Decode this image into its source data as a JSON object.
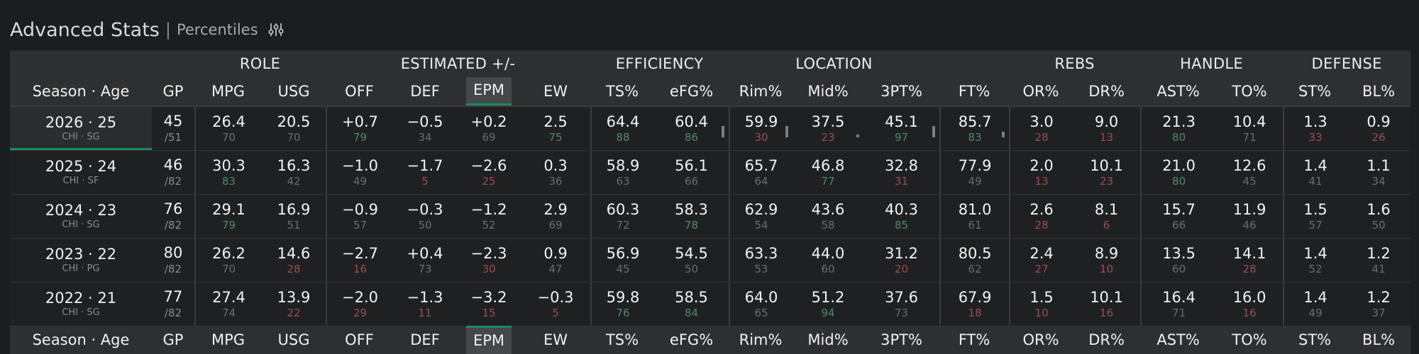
{
  "header": {
    "title": "Advanced Stats",
    "separator": "|",
    "subtitle": "Percentiles"
  },
  "groups": [
    {
      "label": "",
      "span": 2
    },
    {
      "label": "ROLE",
      "span": 2
    },
    {
      "label": "ESTIMATED +/-",
      "span": 4
    },
    {
      "label": "EFFICIENCY",
      "span": 2
    },
    {
      "label": "LOCATION",
      "span": 3
    },
    {
      "label": "",
      "span": 1
    },
    {
      "label": "REBS",
      "span": 2
    },
    {
      "label": "HANDLE",
      "span": 2
    },
    {
      "label": "DEFENSE",
      "span": 2
    }
  ],
  "columns": [
    "Season · Age",
    "GP",
    "MPG",
    "USG",
    "OFF",
    "DEF",
    "EPM",
    "EW",
    "TS%",
    "eFG%",
    "Rim%",
    "Mid%",
    "3PT%",
    "FT%",
    "OR%",
    "DR%",
    "AST%",
    "TO%",
    "ST%",
    "BL%"
  ],
  "active_column": "EPM",
  "colors": {
    "high_pct": "#4f8a6d",
    "low_pct": "#9a4e50",
    "accent": "#1a8a5f"
  },
  "rows": [
    {
      "season": "2026 · 25",
      "team": "CHI · SG",
      "gp": "45",
      "gp_total": "/51",
      "selected": true,
      "stats": [
        {
          "v": "26.4",
          "p": "70"
        },
        {
          "v": "20.5",
          "p": "70"
        },
        {
          "v": "+0.7",
          "p": "79"
        },
        {
          "v": "−0.5",
          "p": "34"
        },
        {
          "v": "+0.2",
          "p": "69"
        },
        {
          "v": "2.5",
          "p": "75"
        },
        {
          "v": "64.4",
          "p": "88"
        },
        {
          "v": "60.4",
          "p": "86",
          "bar": 0.6
        },
        {
          "v": "59.9",
          "p": "30",
          "bar": 0.6
        },
        {
          "v": "37.5",
          "p": "23",
          "bar": 0.15
        },
        {
          "v": "45.1",
          "p": "97",
          "bar": 0.6
        },
        {
          "v": "85.7",
          "p": "83",
          "bar": 0.3
        },
        {
          "v": "3.0",
          "p": "28"
        },
        {
          "v": "9.0",
          "p": "13"
        },
        {
          "v": "21.3",
          "p": "80"
        },
        {
          "v": "10.4",
          "p": "71"
        },
        {
          "v": "1.3",
          "p": "33"
        },
        {
          "v": "0.9",
          "p": "26"
        }
      ]
    },
    {
      "season": "2025 · 24",
      "team": "CHI · SF",
      "gp": "46",
      "gp_total": "/82",
      "selected": false,
      "stats": [
        {
          "v": "30.3",
          "p": "83"
        },
        {
          "v": "16.3",
          "p": "42"
        },
        {
          "v": "−1.0",
          "p": "49"
        },
        {
          "v": "−1.7",
          "p": "5"
        },
        {
          "v": "−2.6",
          "p": "25"
        },
        {
          "v": "0.3",
          "p": "36"
        },
        {
          "v": "58.9",
          "p": "63"
        },
        {
          "v": "56.1",
          "p": "66"
        },
        {
          "v": "65.7",
          "p": "64"
        },
        {
          "v": "46.8",
          "p": "77"
        },
        {
          "v": "32.8",
          "p": "31"
        },
        {
          "v": "77.9",
          "p": "49"
        },
        {
          "v": "2.0",
          "p": "13"
        },
        {
          "v": "10.1",
          "p": "23"
        },
        {
          "v": "21.0",
          "p": "80"
        },
        {
          "v": "12.6",
          "p": "45"
        },
        {
          "v": "1.4",
          "p": "41"
        },
        {
          "v": "1.1",
          "p": "34"
        }
      ]
    },
    {
      "season": "2024 · 23",
      "team": "CHI · SG",
      "gp": "76",
      "gp_total": "/82",
      "selected": false,
      "stats": [
        {
          "v": "29.1",
          "p": "79"
        },
        {
          "v": "16.9",
          "p": "51"
        },
        {
          "v": "−0.9",
          "p": "57"
        },
        {
          "v": "−0.3",
          "p": "50"
        },
        {
          "v": "−1.2",
          "p": "52"
        },
        {
          "v": "2.9",
          "p": "69"
        },
        {
          "v": "60.3",
          "p": "72"
        },
        {
          "v": "58.3",
          "p": "78"
        },
        {
          "v": "62.9",
          "p": "54"
        },
        {
          "v": "43.6",
          "p": "58"
        },
        {
          "v": "40.3",
          "p": "85"
        },
        {
          "v": "81.0",
          "p": "61"
        },
        {
          "v": "2.6",
          "p": "28"
        },
        {
          "v": "8.1",
          "p": "6"
        },
        {
          "v": "15.7",
          "p": "66"
        },
        {
          "v": "11.9",
          "p": "46"
        },
        {
          "v": "1.5",
          "p": "57"
        },
        {
          "v": "1.6",
          "p": "50"
        }
      ]
    },
    {
      "season": "2023 · 22",
      "team": "CHI · PG",
      "gp": "80",
      "gp_total": "/82",
      "selected": false,
      "stats": [
        {
          "v": "26.2",
          "p": "70"
        },
        {
          "v": "14.6",
          "p": "28"
        },
        {
          "v": "−2.7",
          "p": "16"
        },
        {
          "v": "+0.4",
          "p": "73"
        },
        {
          "v": "−2.3",
          "p": "30"
        },
        {
          "v": "0.9",
          "p": "47"
        },
        {
          "v": "56.9",
          "p": "45"
        },
        {
          "v": "54.5",
          "p": "50"
        },
        {
          "v": "63.3",
          "p": "53"
        },
        {
          "v": "44.0",
          "p": "60"
        },
        {
          "v": "31.2",
          "p": "20"
        },
        {
          "v": "80.5",
          "p": "62"
        },
        {
          "v": "2.4",
          "p": "27"
        },
        {
          "v": "8.9",
          "p": "10"
        },
        {
          "v": "13.5",
          "p": "60"
        },
        {
          "v": "14.1",
          "p": "28"
        },
        {
          "v": "1.4",
          "p": "52"
        },
        {
          "v": "1.2",
          "p": "41"
        }
      ]
    },
    {
      "season": "2022 · 21",
      "team": "CHI · SG",
      "gp": "77",
      "gp_total": "/82",
      "selected": false,
      "stats": [
        {
          "v": "27.4",
          "p": "74"
        },
        {
          "v": "13.9",
          "p": "22"
        },
        {
          "v": "−2.0",
          "p": "29"
        },
        {
          "v": "−1.3",
          "p": "11"
        },
        {
          "v": "−3.2",
          "p": "15"
        },
        {
          "v": "−0.3",
          "p": "5"
        },
        {
          "v": "59.8",
          "p": "76"
        },
        {
          "v": "58.5",
          "p": "84"
        },
        {
          "v": "64.0",
          "p": "65"
        },
        {
          "v": "51.2",
          "p": "94"
        },
        {
          "v": "37.6",
          "p": "73"
        },
        {
          "v": "67.9",
          "p": "18"
        },
        {
          "v": "1.5",
          "p": "10"
        },
        {
          "v": "10.1",
          "p": "16"
        },
        {
          "v": "16.4",
          "p": "71"
        },
        {
          "v": "16.0",
          "p": "16"
        },
        {
          "v": "1.4",
          "p": "49"
        },
        {
          "v": "1.2",
          "p": "37"
        }
      ]
    }
  ]
}
